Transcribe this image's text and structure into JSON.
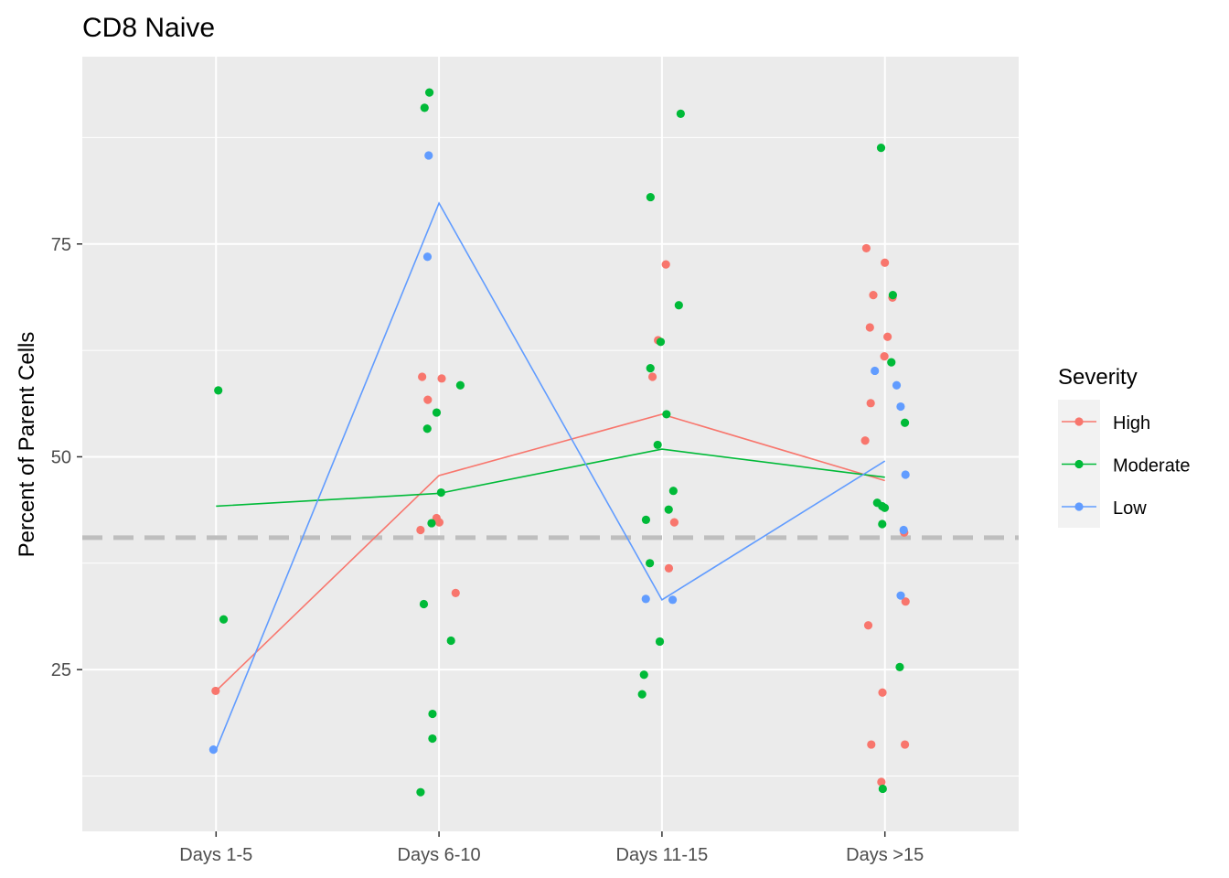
{
  "chart_data": {
    "type": "scatter",
    "title": "CD8 Naive",
    "xlabel": "",
    "ylabel": "Percent of Parent Cells",
    "categories": [
      "Days 1-5",
      "Days 6-10",
      "Days 11-15",
      "Days >15"
    ],
    "ylim": [
      6,
      97
    ],
    "yticks": [
      25,
      50,
      75
    ],
    "grid": true,
    "reference_line": {
      "y": 40.5,
      "style": "dashed",
      "color": "#bebebe"
    },
    "legend": {
      "title": "Severity",
      "position": "right"
    },
    "colors": {
      "High": "#F8766D",
      "Moderate": "#00BA38",
      "Low": "#619CFF"
    },
    "series": [
      {
        "name": "High",
        "color": "#F8766D",
        "line": [
          22.5,
          47.8,
          55.0,
          47.2
        ],
        "points": [
          {
            "x": "Days 1-5",
            "y": 22.5
          },
          {
            "x": "Days 6-10",
            "y": 59.2
          },
          {
            "x": "Days 6-10",
            "y": 59.4
          },
          {
            "x": "Days 6-10",
            "y": 56.7
          },
          {
            "x": "Days 6-10",
            "y": 42.8
          },
          {
            "x": "Days 6-10",
            "y": 42.3
          },
          {
            "x": "Days 6-10",
            "y": 41.4
          },
          {
            "x": "Days 6-10",
            "y": 34.0
          },
          {
            "x": "Days 11-15",
            "y": 72.6
          },
          {
            "x": "Days 11-15",
            "y": 63.7
          },
          {
            "x": "Days 11-15",
            "y": 59.4
          },
          {
            "x": "Days 11-15",
            "y": 42.3
          },
          {
            "x": "Days 11-15",
            "y": 36.9
          },
          {
            "x": "Days >15",
            "y": 74.5
          },
          {
            "x": "Days >15",
            "y": 72.8
          },
          {
            "x": "Days >15",
            "y": 69.0
          },
          {
            "x": "Days >15",
            "y": 68.7
          },
          {
            "x": "Days >15",
            "y": 65.2
          },
          {
            "x": "Days >15",
            "y": 64.1
          },
          {
            "x": "Days >15",
            "y": 61.8
          },
          {
            "x": "Days >15",
            "y": 56.3
          },
          {
            "x": "Days >15",
            "y": 51.9
          },
          {
            "x": "Days >15",
            "y": 41.1
          },
          {
            "x": "Days >15",
            "y": 33.0
          },
          {
            "x": "Days >15",
            "y": 30.2
          },
          {
            "x": "Days >15",
            "y": 22.3
          },
          {
            "x": "Days >15",
            "y": 16.2
          },
          {
            "x": "Days >15",
            "y": 16.2
          },
          {
            "x": "Days >15",
            "y": 11.8
          }
        ]
      },
      {
        "name": "Moderate",
        "color": "#00BA38",
        "line": [
          44.2,
          45.7,
          50.9,
          47.6
        ],
        "points": [
          {
            "x": "Days 1-5",
            "y": 57.8
          },
          {
            "x": "Days 1-5",
            "y": 30.9
          },
          {
            "x": "Days 6-10",
            "y": 92.8
          },
          {
            "x": "Days 6-10",
            "y": 91.0
          },
          {
            "x": "Days 6-10",
            "y": 58.4
          },
          {
            "x": "Days 6-10",
            "y": 55.2
          },
          {
            "x": "Days 6-10",
            "y": 53.3
          },
          {
            "x": "Days 6-10",
            "y": 45.8
          },
          {
            "x": "Days 6-10",
            "y": 42.2
          },
          {
            "x": "Days 6-10",
            "y": 32.7
          },
          {
            "x": "Days 6-10",
            "y": 28.4
          },
          {
            "x": "Days 6-10",
            "y": 19.8
          },
          {
            "x": "Days 6-10",
            "y": 16.9
          },
          {
            "x": "Days 6-10",
            "y": 10.6
          },
          {
            "x": "Days 11-15",
            "y": 90.3
          },
          {
            "x": "Days 11-15",
            "y": 80.5
          },
          {
            "x": "Days 11-15",
            "y": 67.8
          },
          {
            "x": "Days 11-15",
            "y": 63.5
          },
          {
            "x": "Days 11-15",
            "y": 60.4
          },
          {
            "x": "Days 11-15",
            "y": 55.0
          },
          {
            "x": "Days 11-15",
            "y": 51.4
          },
          {
            "x": "Days 11-15",
            "y": 46.0
          },
          {
            "x": "Days 11-15",
            "y": 43.8
          },
          {
            "x": "Days 11-15",
            "y": 42.6
          },
          {
            "x": "Days 11-15",
            "y": 37.5
          },
          {
            "x": "Days 11-15",
            "y": 28.3
          },
          {
            "x": "Days 11-15",
            "y": 24.4
          },
          {
            "x": "Days 11-15",
            "y": 22.1
          },
          {
            "x": "Days >15",
            "y": 86.3
          },
          {
            "x": "Days >15",
            "y": 69.0
          },
          {
            "x": "Days >15",
            "y": 61.1
          },
          {
            "x": "Days >15",
            "y": 54.0
          },
          {
            "x": "Days >15",
            "y": 44.6
          },
          {
            "x": "Days >15",
            "y": 44.2
          },
          {
            "x": "Days >15",
            "y": 44.0
          },
          {
            "x": "Days >15",
            "y": 42.1
          },
          {
            "x": "Days >15",
            "y": 25.3
          },
          {
            "x": "Days >15",
            "y": 11.0
          }
        ]
      },
      {
        "name": "Low",
        "color": "#619CFF",
        "line": [
          15.6,
          79.8,
          33.2,
          49.5
        ],
        "points": [
          {
            "x": "Days 1-5",
            "y": 15.6
          },
          {
            "x": "Days 6-10",
            "y": 85.4
          },
          {
            "x": "Days 6-10",
            "y": 73.5
          },
          {
            "x": "Days 11-15",
            "y": 33.2
          },
          {
            "x": "Days 11-15",
            "y": 33.3
          },
          {
            "x": "Days >15",
            "y": 60.1
          },
          {
            "x": "Days >15",
            "y": 58.4
          },
          {
            "x": "Days >15",
            "y": 55.9
          },
          {
            "x": "Days >15",
            "y": 47.9
          },
          {
            "x": "Days >15",
            "y": 41.4
          },
          {
            "x": "Days >15",
            "y": 33.7
          }
        ]
      }
    ]
  }
}
